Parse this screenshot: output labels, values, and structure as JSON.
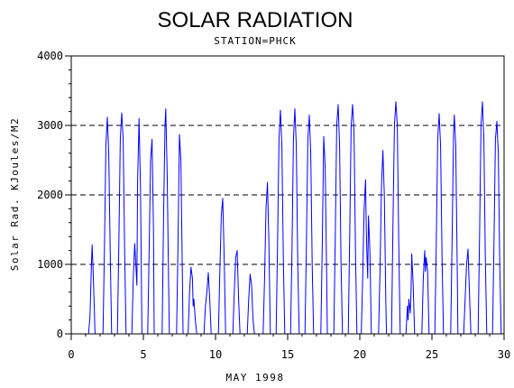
{
  "chart_data": {
    "type": "line",
    "title": "SOLAR RADIATION",
    "subtitle": "STATION=PHCK",
    "xlabel": "MAY 1998",
    "ylabel": "Solar Rad. KJoules/M2",
    "xlim": [
      0,
      30
    ],
    "ylim": [
      0,
      4000
    ],
    "x_ticks": [
      "0",
      "5",
      "10",
      "15",
      "20",
      "25",
      "30"
    ],
    "y_ticks": [
      "0",
      "1000",
      "2000",
      "3000",
      "4000"
    ],
    "grid": "horizontal dashed",
    "line_color": "#0000ff",
    "series": [
      {
        "points": [
          [
            1.2,
            0
          ],
          [
            1.3,
            250
          ],
          [
            1.4,
            1000
          ],
          [
            1.45,
            1280
          ],
          [
            1.55,
            700
          ],
          [
            1.65,
            0
          ],
          [
            2.2,
            0
          ],
          [
            2.3,
            1200
          ],
          [
            2.4,
            2700
          ],
          [
            2.5,
            3120
          ],
          [
            2.6,
            2600
          ],
          [
            2.7,
            1200
          ],
          [
            2.8,
            0
          ],
          [
            3.2,
            0
          ],
          [
            3.3,
            1300
          ],
          [
            3.4,
            2800
          ],
          [
            3.5,
            3180
          ],
          [
            3.6,
            2800
          ],
          [
            3.7,
            1200
          ],
          [
            3.8,
            0
          ],
          [
            4.2,
            0
          ],
          [
            4.3,
            800
          ],
          [
            4.4,
            1300
          ],
          [
            4.5,
            900
          ],
          [
            4.55,
            700
          ],
          [
            4.6,
            2200
          ],
          [
            4.7,
            3100
          ],
          [
            4.8,
            2100
          ],
          [
            4.9,
            0
          ],
          [
            5.3,
            0
          ],
          [
            5.4,
            1200
          ],
          [
            5.5,
            2500
          ],
          [
            5.6,
            2800
          ],
          [
            5.7,
            1500
          ],
          [
            5.75,
            0
          ],
          [
            6.3,
            0
          ],
          [
            6.4,
            1700
          ],
          [
            6.5,
            3000
          ],
          [
            6.55,
            3240
          ],
          [
            6.65,
            2300
          ],
          [
            6.75,
            700
          ],
          [
            6.8,
            0
          ],
          [
            7.3,
            0
          ],
          [
            7.4,
            1300
          ],
          [
            7.5,
            2870
          ],
          [
            7.6,
            2500
          ],
          [
            7.7,
            900
          ],
          [
            7.75,
            0
          ],
          [
            8.1,
            0
          ],
          [
            8.2,
            600
          ],
          [
            8.3,
            960
          ],
          [
            8.4,
            800
          ],
          [
            8.45,
            400
          ],
          [
            8.5,
            500
          ],
          [
            8.6,
            200
          ],
          [
            8.7,
            0
          ],
          [
            9.2,
            0
          ],
          [
            9.3,
            400
          ],
          [
            9.4,
            600
          ],
          [
            9.5,
            880
          ],
          [
            9.6,
            500
          ],
          [
            9.7,
            0
          ],
          [
            10.2,
            0
          ],
          [
            10.3,
            900
          ],
          [
            10.4,
            1700
          ],
          [
            10.5,
            1950
          ],
          [
            10.6,
            1100
          ],
          [
            10.7,
            0
          ],
          [
            11.2,
            0
          ],
          [
            11.3,
            600
          ],
          [
            11.4,
            1100
          ],
          [
            11.5,
            1200
          ],
          [
            11.6,
            500
          ],
          [
            11.7,
            0
          ],
          [
            12.2,
            0
          ],
          [
            12.3,
            500
          ],
          [
            12.4,
            860
          ],
          [
            12.5,
            700
          ],
          [
            12.6,
            200
          ],
          [
            12.7,
            0
          ],
          [
            13.3,
            0
          ],
          [
            13.4,
            800
          ],
          [
            13.5,
            1800
          ],
          [
            13.6,
            2180
          ],
          [
            13.7,
            1300
          ],
          [
            13.8,
            0
          ],
          [
            14.2,
            0
          ],
          [
            14.3,
            1300
          ],
          [
            14.4,
            2800
          ],
          [
            14.5,
            3220
          ],
          [
            14.6,
            2700
          ],
          [
            14.7,
            1100
          ],
          [
            14.8,
            0
          ],
          [
            15.2,
            0
          ],
          [
            15.3,
            1200
          ],
          [
            15.4,
            2800
          ],
          [
            15.5,
            3240
          ],
          [
            15.6,
            2700
          ],
          [
            15.7,
            1000
          ],
          [
            15.8,
            0
          ],
          [
            16.2,
            0
          ],
          [
            16.3,
            1300
          ],
          [
            16.4,
            2800
          ],
          [
            16.5,
            3150
          ],
          [
            16.6,
            2600
          ],
          [
            16.7,
            1000
          ],
          [
            16.8,
            0
          ],
          [
            17.3,
            0
          ],
          [
            17.4,
            1300
          ],
          [
            17.5,
            2840
          ],
          [
            17.6,
            2400
          ],
          [
            17.7,
            900
          ],
          [
            17.75,
            0
          ],
          [
            18.2,
            0
          ],
          [
            18.3,
            1400
          ],
          [
            18.4,
            3000
          ],
          [
            18.5,
            3300
          ],
          [
            18.6,
            2700
          ],
          [
            18.7,
            1000
          ],
          [
            18.8,
            0
          ],
          [
            19.2,
            0
          ],
          [
            19.3,
            1400
          ],
          [
            19.4,
            3000
          ],
          [
            19.5,
            3300
          ],
          [
            19.6,
            2900
          ],
          [
            19.7,
            1200
          ],
          [
            19.8,
            0
          ],
          [
            20.1,
            0
          ],
          [
            20.2,
            800
          ],
          [
            20.3,
            1800
          ],
          [
            20.4,
            2220
          ],
          [
            20.45,
            1500
          ],
          [
            20.5,
            1100
          ],
          [
            20.55,
            800
          ],
          [
            20.6,
            1700
          ],
          [
            20.7,
            1200
          ],
          [
            20.8,
            0
          ],
          [
            21.3,
            0
          ],
          [
            21.4,
            900
          ],
          [
            21.5,
            2100
          ],
          [
            21.6,
            2640
          ],
          [
            21.7,
            2000
          ],
          [
            21.8,
            500
          ],
          [
            21.85,
            0
          ],
          [
            22.2,
            0
          ],
          [
            22.3,
            1600
          ],
          [
            22.4,
            3000
          ],
          [
            22.5,
            3340
          ],
          [
            22.6,
            3000
          ],
          [
            22.7,
            1300
          ],
          [
            22.8,
            0
          ],
          [
            23.2,
            0
          ],
          [
            23.3,
            400
          ],
          [
            23.35,
            200
          ],
          [
            23.4,
            500
          ],
          [
            23.5,
            300
          ],
          [
            23.55,
            600
          ],
          [
            23.6,
            1150
          ],
          [
            23.7,
            700
          ],
          [
            23.8,
            0
          ],
          [
            24.3,
            0
          ],
          [
            24.4,
            800
          ],
          [
            24.5,
            1200
          ],
          [
            24.55,
            900
          ],
          [
            24.6,
            1100
          ],
          [
            24.7,
            900
          ],
          [
            24.8,
            0
          ],
          [
            25.2,
            0
          ],
          [
            25.3,
            1300
          ],
          [
            25.4,
            2800
          ],
          [
            25.5,
            3170
          ],
          [
            25.6,
            2700
          ],
          [
            25.7,
            1100
          ],
          [
            25.8,
            0
          ],
          [
            26.3,
            0
          ],
          [
            26.4,
            1400
          ],
          [
            26.5,
            2900
          ],
          [
            26.55,
            3150
          ],
          [
            26.65,
            2700
          ],
          [
            26.75,
            1000
          ],
          [
            26.8,
            0
          ],
          [
            27.2,
            0
          ],
          [
            27.3,
            500
          ],
          [
            27.4,
            1000
          ],
          [
            27.5,
            1220
          ],
          [
            27.6,
            600
          ],
          [
            27.7,
            0
          ],
          [
            28.2,
            0
          ],
          [
            28.3,
            1400
          ],
          [
            28.4,
            3000
          ],
          [
            28.5,
            3340
          ],
          [
            28.6,
            2800
          ],
          [
            28.7,
            1100
          ],
          [
            28.8,
            0
          ],
          [
            29.2,
            0
          ],
          [
            29.3,
            1300
          ],
          [
            29.4,
            2800
          ],
          [
            29.5,
            3060
          ],
          [
            29.6,
            2600
          ],
          [
            29.7,
            1000
          ],
          [
            29.8,
            0
          ]
        ]
      }
    ]
  }
}
